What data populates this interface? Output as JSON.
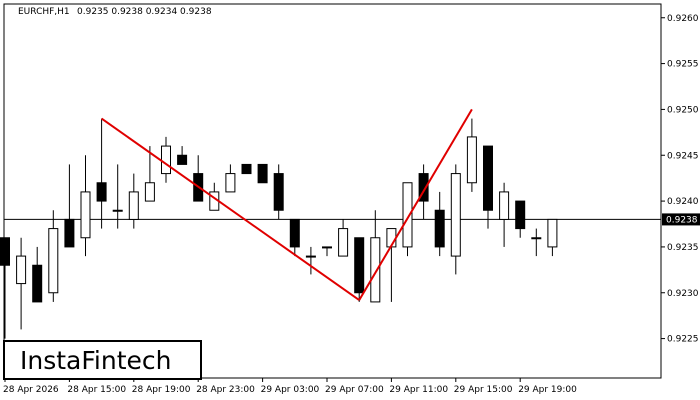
{
  "chart_data": {
    "type": "candlestick",
    "header": {
      "symbol": "EURCHF,H1",
      "ohlc": "0.9235 0.9238 0.9234 0.9238"
    },
    "y_ticks": [
      "0.9260",
      "0.9255",
      "0.9250",
      "0.9245",
      "0.9240",
      "0.9235",
      "0.9230",
      "0.9225"
    ],
    "y_tick_values": [
      0.926,
      0.9255,
      0.925,
      0.9245,
      0.924,
      0.9235,
      0.923,
      0.9225
    ],
    "ylim": [
      0.92207,
      0.92615
    ],
    "x_labels": [
      "28 Apr 2026",
      "28 Apr 15:00",
      "28 Apr 19:00",
      "28 Apr 23:00",
      "29 Apr 03:00",
      "29 Apr 07:00",
      "29 Apr 11:00",
      "29 Apr 15:00",
      "29 Apr 19:00"
    ],
    "x_label_bar_index": [
      0,
      4,
      8,
      12,
      16,
      20,
      24,
      28,
      32
    ],
    "last_price": "0.9238",
    "last_price_value": 0.9238,
    "candles": [
      {
        "o": 0.9236,
        "h": 0.9236,
        "l": 0.9225,
        "c": 0.9233
      },
      {
        "o": 0.9231,
        "h": 0.9236,
        "l": 0.9226,
        "c": 0.9234
      },
      {
        "o": 0.9233,
        "h": 0.9235,
        "l": 0.9229,
        "c": 0.9229
      },
      {
        "o": 0.923,
        "h": 0.9239,
        "l": 0.9229,
        "c": 0.9237
      },
      {
        "o": 0.9238,
        "h": 0.9244,
        "l": 0.9235,
        "c": 0.9235
      },
      {
        "o": 0.9236,
        "h": 0.9245,
        "l": 0.9234,
        "c": 0.9241
      },
      {
        "o": 0.9242,
        "h": 0.9249,
        "l": 0.9237,
        "c": 0.924
      },
      {
        "o": 0.9239,
        "h": 0.9244,
        "l": 0.9237,
        "c": 0.9239
      },
      {
        "o": 0.9238,
        "h": 0.9243,
        "l": 0.9237,
        "c": 0.9241
      },
      {
        "o": 0.924,
        "h": 0.9246,
        "l": 0.924,
        "c": 0.9242
      },
      {
        "o": 0.9243,
        "h": 0.9247,
        "l": 0.9242,
        "c": 0.9246
      },
      {
        "o": 0.9245,
        "h": 0.9246,
        "l": 0.9244,
        "c": 0.9244
      },
      {
        "o": 0.9243,
        "h": 0.9245,
        "l": 0.924,
        "c": 0.924
      },
      {
        "o": 0.9239,
        "h": 0.9242,
        "l": 0.9239,
        "c": 0.9241
      },
      {
        "o": 0.9241,
        "h": 0.9244,
        "l": 0.9241,
        "c": 0.9243
      },
      {
        "o": 0.9244,
        "h": 0.9244,
        "l": 0.9243,
        "c": 0.9243
      },
      {
        "o": 0.9244,
        "h": 0.9244,
        "l": 0.9242,
        "c": 0.9242
      },
      {
        "o": 0.9243,
        "h": 0.9244,
        "l": 0.9238,
        "c": 0.9239
      },
      {
        "o": 0.9238,
        "h": 0.9238,
        "l": 0.9234,
        "c": 0.9235
      },
      {
        "o": 0.9234,
        "h": 0.9235,
        "l": 0.9232,
        "c": 0.9234
      },
      {
        "o": 0.9235,
        "h": 0.9235,
        "l": 0.9234,
        "c": 0.9235
      },
      {
        "o": 0.9234,
        "h": 0.9238,
        "l": 0.9234,
        "c": 0.9237
      },
      {
        "o": 0.9236,
        "h": 0.9236,
        "l": 0.9229,
        "c": 0.923
      },
      {
        "o": 0.9229,
        "h": 0.9239,
        "l": 0.9229,
        "c": 0.9236
      },
      {
        "o": 0.9235,
        "h": 0.9237,
        "l": 0.9229,
        "c": 0.9237
      },
      {
        "o": 0.9235,
        "h": 0.9242,
        "l": 0.9234,
        "c": 0.9242
      },
      {
        "o": 0.9243,
        "h": 0.9244,
        "l": 0.9238,
        "c": 0.924
      },
      {
        "o": 0.9239,
        "h": 0.9241,
        "l": 0.9234,
        "c": 0.9235
      },
      {
        "o": 0.9234,
        "h": 0.9244,
        "l": 0.9232,
        "c": 0.9243
      },
      {
        "o": 0.9242,
        "h": 0.9249,
        "l": 0.9241,
        "c": 0.9247
      },
      {
        "o": 0.9246,
        "h": 0.9246,
        "l": 0.9237,
        "c": 0.9239
      },
      {
        "o": 0.9238,
        "h": 0.9242,
        "l": 0.9235,
        "c": 0.9241
      },
      {
        "o": 0.924,
        "h": 0.924,
        "l": 0.9236,
        "c": 0.9237
      },
      {
        "o": 0.9236,
        "h": 0.9237,
        "l": 0.9234,
        "c": 0.9236
      },
      {
        "o": 0.9235,
        "h": 0.9238,
        "l": 0.9234,
        "c": 0.9238
      }
    ],
    "pattern_lines": [
      {
        "from_bar": 6,
        "from_price": 0.9249,
        "to_bar": 22,
        "to_price": 0.92292
      },
      {
        "from_bar": 22,
        "from_price": 0.92292,
        "to_bar": 29,
        "to_price": 0.925
      }
    ],
    "pattern_color": "#e00000",
    "bull_color": "#ffffff",
    "bear_color": "#000000",
    "grid": false
  },
  "logo": {
    "text": "InstaFintech"
  }
}
